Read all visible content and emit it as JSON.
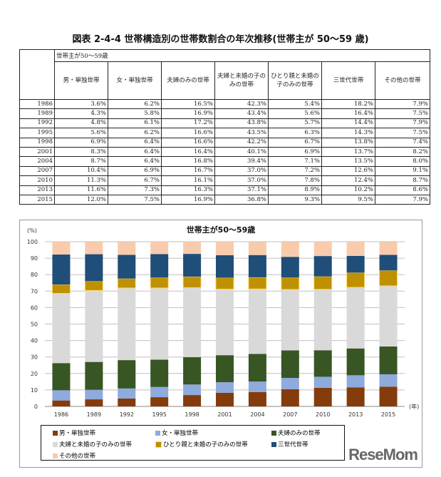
{
  "title": "図表 2-4-4  世帯構造別の世帯数割合の年次推移(世帯主が 50〜59 歳)",
  "table": {
    "group_header": "世帯主が50〜59歳",
    "columns": [
      "男・単独世帯",
      "女・単独世帯",
      "夫婦のみの世帯",
      "夫婦と未婚の子のみの世帯",
      "ひとり親と未婚の子のみの世帯",
      "三世代世帯",
      "その他の世帯"
    ],
    "rows": [
      [
        "1986",
        "3.6%",
        "6.2%",
        "16.5%",
        "42.3%",
        "5.4%",
        "18.2%",
        "7.9%"
      ],
      [
        "1989",
        "4.3%",
        "5.8%",
        "16.9%",
        "43.4%",
        "5.6%",
        "16.4%",
        "7.5%"
      ],
      [
        "1992",
        "4.8%",
        "6.1%",
        "17.2%",
        "43.8%",
        "5.7%",
        "14.4%",
        "7.9%"
      ],
      [
        "1995",
        "5.6%",
        "6.2%",
        "16.6%",
        "43.5%",
        "6.3%",
        "14.3%",
        "7.5%"
      ],
      [
        "1998",
        "6.9%",
        "6.4%",
        "16.6%",
        "42.2%",
        "6.7%",
        "13.8%",
        "7.4%"
      ],
      [
        "2001",
        "8.3%",
        "6.4%",
        "16.4%",
        "40.1%",
        "6.9%",
        "13.7%",
        "8.2%"
      ],
      [
        "2004",
        "8.7%",
        "6.4%",
        "16.8%",
        "39.4%",
        "7.1%",
        "13.5%",
        "8.0%"
      ],
      [
        "2007",
        "10.4%",
        "6.9%",
        "16.7%",
        "37.0%",
        "7.2%",
        "12.6%",
        "9.1%"
      ],
      [
        "2010",
        "11.3%",
        "6.7%",
        "16.1%",
        "37.0%",
        "7.8%",
        "12.4%",
        "8.7%"
      ],
      [
        "2013",
        "11.6%",
        "7.3%",
        "16.3%",
        "37.1%",
        "8.9%",
        "10.2%",
        "8.6%"
      ],
      [
        "2015",
        "12.0%",
        "7.5%",
        "16.9%",
        "36.8%",
        "9.3%",
        "9.5%",
        "7.9%"
      ]
    ]
  },
  "chart_data": {
    "type": "bar",
    "stacked": true,
    "title": "世帯主が50〜59歳",
    "ylabel": "(%)",
    "xlabel": "(年)",
    "ylim": [
      0,
      100
    ],
    "yticks": [
      "0",
      "10",
      "20",
      "30",
      "40",
      "50",
      "60",
      "70",
      "80",
      "90",
      "100"
    ],
    "grid": true,
    "legend": "bottom",
    "categories": [
      "1986",
      "1989",
      "1992",
      "1995",
      "1998",
      "2001",
      "2004",
      "2007",
      "2010",
      "2013",
      "2015"
    ],
    "series": [
      {
        "name": "男・単独世帯",
        "color": "#843c0c",
        "values": [
          3.6,
          4.3,
          4.8,
          5.6,
          6.9,
          8.3,
          8.7,
          10.4,
          11.3,
          11.6,
          12.0
        ]
      },
      {
        "name": "女・単独世帯",
        "color": "#8faadc",
        "values": [
          6.2,
          5.8,
          6.1,
          6.2,
          6.4,
          6.4,
          6.4,
          6.9,
          6.7,
          7.3,
          7.5
        ]
      },
      {
        "name": "夫婦のみの世帯",
        "color": "#375623",
        "values": [
          16.5,
          16.9,
          17.2,
          16.6,
          16.6,
          16.4,
          16.8,
          16.7,
          16.1,
          16.3,
          16.9
        ]
      },
      {
        "name": "夫婦と未婚の子のみの世帯",
        "color": "#d9d9d9",
        "values": [
          42.3,
          43.4,
          43.8,
          43.5,
          42.2,
          40.1,
          39.4,
          37.0,
          37.0,
          37.1,
          36.8
        ]
      },
      {
        "name": "ひとり親と未婚の子のみの世帯",
        "color": "#bf9000",
        "values": [
          5.4,
          5.6,
          5.7,
          6.3,
          6.7,
          6.9,
          7.1,
          7.2,
          7.8,
          8.9,
          9.3
        ]
      },
      {
        "name": "三世代世帯",
        "color": "#1f4e79",
        "values": [
          18.2,
          16.4,
          14.4,
          14.3,
          13.8,
          13.7,
          13.5,
          12.6,
          12.4,
          10.2,
          9.5
        ]
      },
      {
        "name": "その他の世帯",
        "color": "#f8cbad",
        "values": [
          7.9,
          7.5,
          7.9,
          7.5,
          7.4,
          8.2,
          8.0,
          9.1,
          8.7,
          8.6,
          7.9
        ]
      }
    ]
  },
  "watermark": "ReseMom"
}
